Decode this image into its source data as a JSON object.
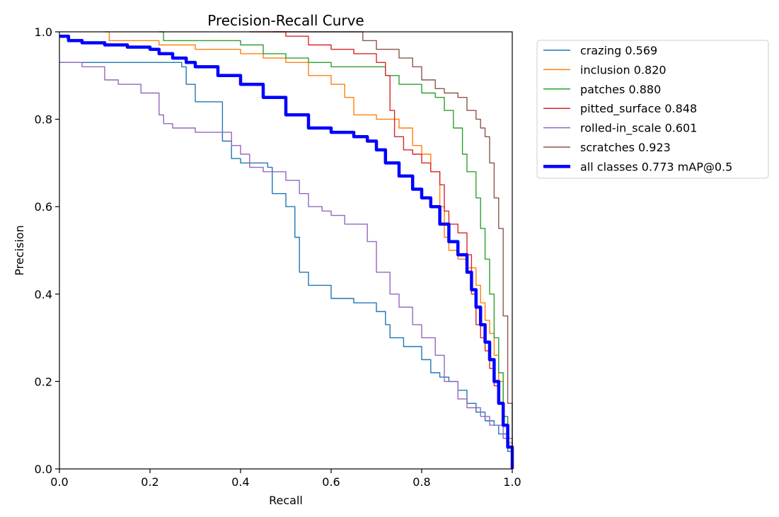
{
  "chart_data": {
    "type": "line",
    "title": "Precision-Recall Curve",
    "xlabel": "Recall",
    "ylabel": "Precision",
    "xlim": [
      0,
      1
    ],
    "ylim": [
      0,
      1
    ],
    "xticks": [
      "0.0",
      "0.2",
      "0.4",
      "0.6",
      "0.8",
      "1.0"
    ],
    "yticks": [
      "0.0",
      "0.2",
      "0.4",
      "0.6",
      "0.8",
      "1.0"
    ],
    "legend_position": "outside-top-right",
    "series": [
      {
        "name": "crazing 0.569",
        "color": "#1f77b4",
        "x": [
          0,
          0.2,
          0.27,
          0.28,
          0.3,
          0.34,
          0.36,
          0.38,
          0.4,
          0.46,
          0.47,
          0.5,
          0.52,
          0.53,
          0.55,
          0.6,
          0.65,
          0.7,
          0.72,
          0.73,
          0.76,
          0.8,
          0.82,
          0.84,
          0.86,
          0.88,
          0.9,
          0.92,
          0.94,
          0.96,
          0.97,
          0.99,
          1.0
        ],
        "y": [
          0.93,
          0.93,
          0.92,
          0.88,
          0.84,
          0.84,
          0.75,
          0.71,
          0.7,
          0.69,
          0.63,
          0.6,
          0.53,
          0.45,
          0.42,
          0.39,
          0.38,
          0.36,
          0.33,
          0.3,
          0.28,
          0.25,
          0.22,
          0.21,
          0.2,
          0.18,
          0.15,
          0.13,
          0.11,
          0.1,
          0.08,
          0.04,
          0.0
        ]
      },
      {
        "name": "inclusion 0.820",
        "color": "#ff7f0e",
        "x": [
          0.1,
          0.11,
          0.2,
          0.22,
          0.3,
          0.4,
          0.45,
          0.5,
          0.55,
          0.6,
          0.63,
          0.65,
          0.7,
          0.75,
          0.78,
          0.8,
          0.82,
          0.84,
          0.85,
          0.86,
          0.88,
          0.9,
          0.92,
          0.93,
          0.94,
          0.95,
          0.96,
          0.97,
          0.98,
          0.99,
          1.0
        ],
        "y": [
          1.0,
          0.98,
          0.98,
          0.97,
          0.96,
          0.95,
          0.94,
          0.93,
          0.9,
          0.88,
          0.85,
          0.81,
          0.8,
          0.78,
          0.74,
          0.72,
          0.68,
          0.6,
          0.53,
          0.5,
          0.48,
          0.46,
          0.42,
          0.38,
          0.34,
          0.31,
          0.26,
          0.2,
          0.12,
          0.06,
          0.0
        ]
      },
      {
        "name": "patches 0.880",
        "color": "#2ca02c",
        "x": [
          0.22,
          0.23,
          0.3,
          0.4,
          0.45,
          0.5,
          0.55,
          0.6,
          0.65,
          0.7,
          0.72,
          0.75,
          0.8,
          0.83,
          0.85,
          0.87,
          0.89,
          0.9,
          0.92,
          0.93,
          0.94,
          0.95,
          0.96,
          0.97,
          0.98,
          0.99,
          1.0
        ],
        "y": [
          1.0,
          0.98,
          0.98,
          0.97,
          0.95,
          0.94,
          0.93,
          0.92,
          0.92,
          0.92,
          0.9,
          0.88,
          0.86,
          0.85,
          0.82,
          0.78,
          0.72,
          0.68,
          0.62,
          0.55,
          0.48,
          0.4,
          0.3,
          0.22,
          0.12,
          0.05,
          0.0
        ]
      },
      {
        "name": "pitted_surface 0.848",
        "color": "#d62728",
        "x": [
          0.42,
          0.44,
          0.5,
          0.55,
          0.6,
          0.65,
          0.7,
          0.72,
          0.73,
          0.74,
          0.76,
          0.78,
          0.8,
          0.82,
          0.84,
          0.85,
          0.86,
          0.88,
          0.9,
          0.91,
          0.92,
          0.93,
          0.94,
          0.95,
          0.96,
          0.97,
          0.98,
          0.99,
          1.0
        ],
        "y": [
          1.0,
          1.0,
          0.99,
          0.97,
          0.96,
          0.95,
          0.93,
          0.9,
          0.82,
          0.76,
          0.73,
          0.72,
          0.7,
          0.68,
          0.65,
          0.59,
          0.56,
          0.54,
          0.49,
          0.4,
          0.33,
          0.3,
          0.27,
          0.23,
          0.19,
          0.15,
          0.1,
          0.05,
          0.0
        ]
      },
      {
        "name": "rolled-in_scale 0.601",
        "color": "#9467bd",
        "x": [
          0,
          0.05,
          0.1,
          0.13,
          0.18,
          0.22,
          0.23,
          0.25,
          0.3,
          0.36,
          0.38,
          0.4,
          0.42,
          0.45,
          0.5,
          0.53,
          0.55,
          0.58,
          0.6,
          0.63,
          0.68,
          0.7,
          0.73,
          0.75,
          0.78,
          0.8,
          0.83,
          0.85,
          0.88,
          0.9,
          0.93,
          0.95,
          0.98,
          1.0
        ],
        "y": [
          0.93,
          0.92,
          0.89,
          0.88,
          0.86,
          0.81,
          0.79,
          0.78,
          0.77,
          0.77,
          0.74,
          0.72,
          0.69,
          0.68,
          0.66,
          0.63,
          0.6,
          0.59,
          0.58,
          0.56,
          0.52,
          0.45,
          0.4,
          0.37,
          0.33,
          0.3,
          0.26,
          0.2,
          0.16,
          0.14,
          0.12,
          0.1,
          0.07,
          0.0
        ]
      },
      {
        "name": "scratches 0.923",
        "color": "#8c564b",
        "x": [
          0.47,
          0.5,
          0.6,
          0.65,
          0.67,
          0.7,
          0.75,
          0.78,
          0.8,
          0.83,
          0.85,
          0.88,
          0.9,
          0.92,
          0.93,
          0.94,
          0.95,
          0.96,
          0.97,
          0.98,
          0.99,
          1.0
        ],
        "y": [
          1.0,
          1.0,
          1.0,
          1.0,
          0.98,
          0.96,
          0.94,
          0.92,
          0.89,
          0.87,
          0.86,
          0.85,
          0.82,
          0.8,
          0.78,
          0.76,
          0.7,
          0.62,
          0.55,
          0.35,
          0.15,
          0.0
        ]
      },
      {
        "name": "all classes 0.773 mAP@0.5",
        "color": "#0000ff",
        "bold": true,
        "x": [
          0,
          0.01,
          0.02,
          0.05,
          0.1,
          0.15,
          0.2,
          0.22,
          0.25,
          0.28,
          0.3,
          0.35,
          0.4,
          0.45,
          0.5,
          0.55,
          0.6,
          0.65,
          0.68,
          0.7,
          0.72,
          0.75,
          0.78,
          0.8,
          0.82,
          0.84,
          0.86,
          0.88,
          0.9,
          0.91,
          0.92,
          0.93,
          0.94,
          0.95,
          0.96,
          0.97,
          0.98,
          0.99,
          1.0
        ],
        "y": [
          0.99,
          0.99,
          0.98,
          0.975,
          0.97,
          0.965,
          0.96,
          0.95,
          0.94,
          0.93,
          0.92,
          0.9,
          0.88,
          0.85,
          0.81,
          0.78,
          0.77,
          0.76,
          0.75,
          0.73,
          0.7,
          0.67,
          0.64,
          0.62,
          0.6,
          0.56,
          0.52,
          0.49,
          0.45,
          0.41,
          0.37,
          0.33,
          0.29,
          0.25,
          0.2,
          0.15,
          0.1,
          0.05,
          0.0
        ]
      }
    ]
  }
}
